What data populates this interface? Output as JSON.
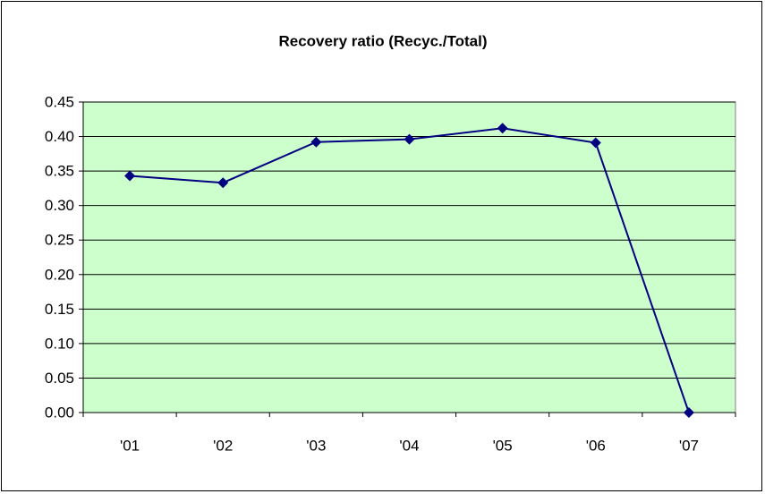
{
  "chart_data": {
    "type": "line",
    "title": "Recovery ratio (Recyc./Total)",
    "categories": [
      "'01",
      "'02",
      "'03",
      "'04",
      "'05",
      "'06",
      "'07"
    ],
    "series": [
      {
        "name": "Recovery ratio",
        "color": "#000080",
        "values": [
          0.343,
          0.333,
          0.392,
          0.396,
          0.412,
          0.391,
          0
        ]
      }
    ],
    "ylim": [
      0,
      0.45
    ],
    "yticks": [
      {
        "value": 0,
        "label": "0.00"
      },
      0.05,
      {
        "value": 0.1,
        "label": "0.10"
      },
      0.15,
      {
        "value": 0.2,
        "label": "0.20"
      },
      0.25,
      {
        "value": 0.3,
        "label": "0.30"
      },
      0.35,
      {
        "value": 0.4,
        "label": "0.40"
      },
      0.45
    ],
    "grid": true,
    "plot_background": "#ccffcc"
  }
}
